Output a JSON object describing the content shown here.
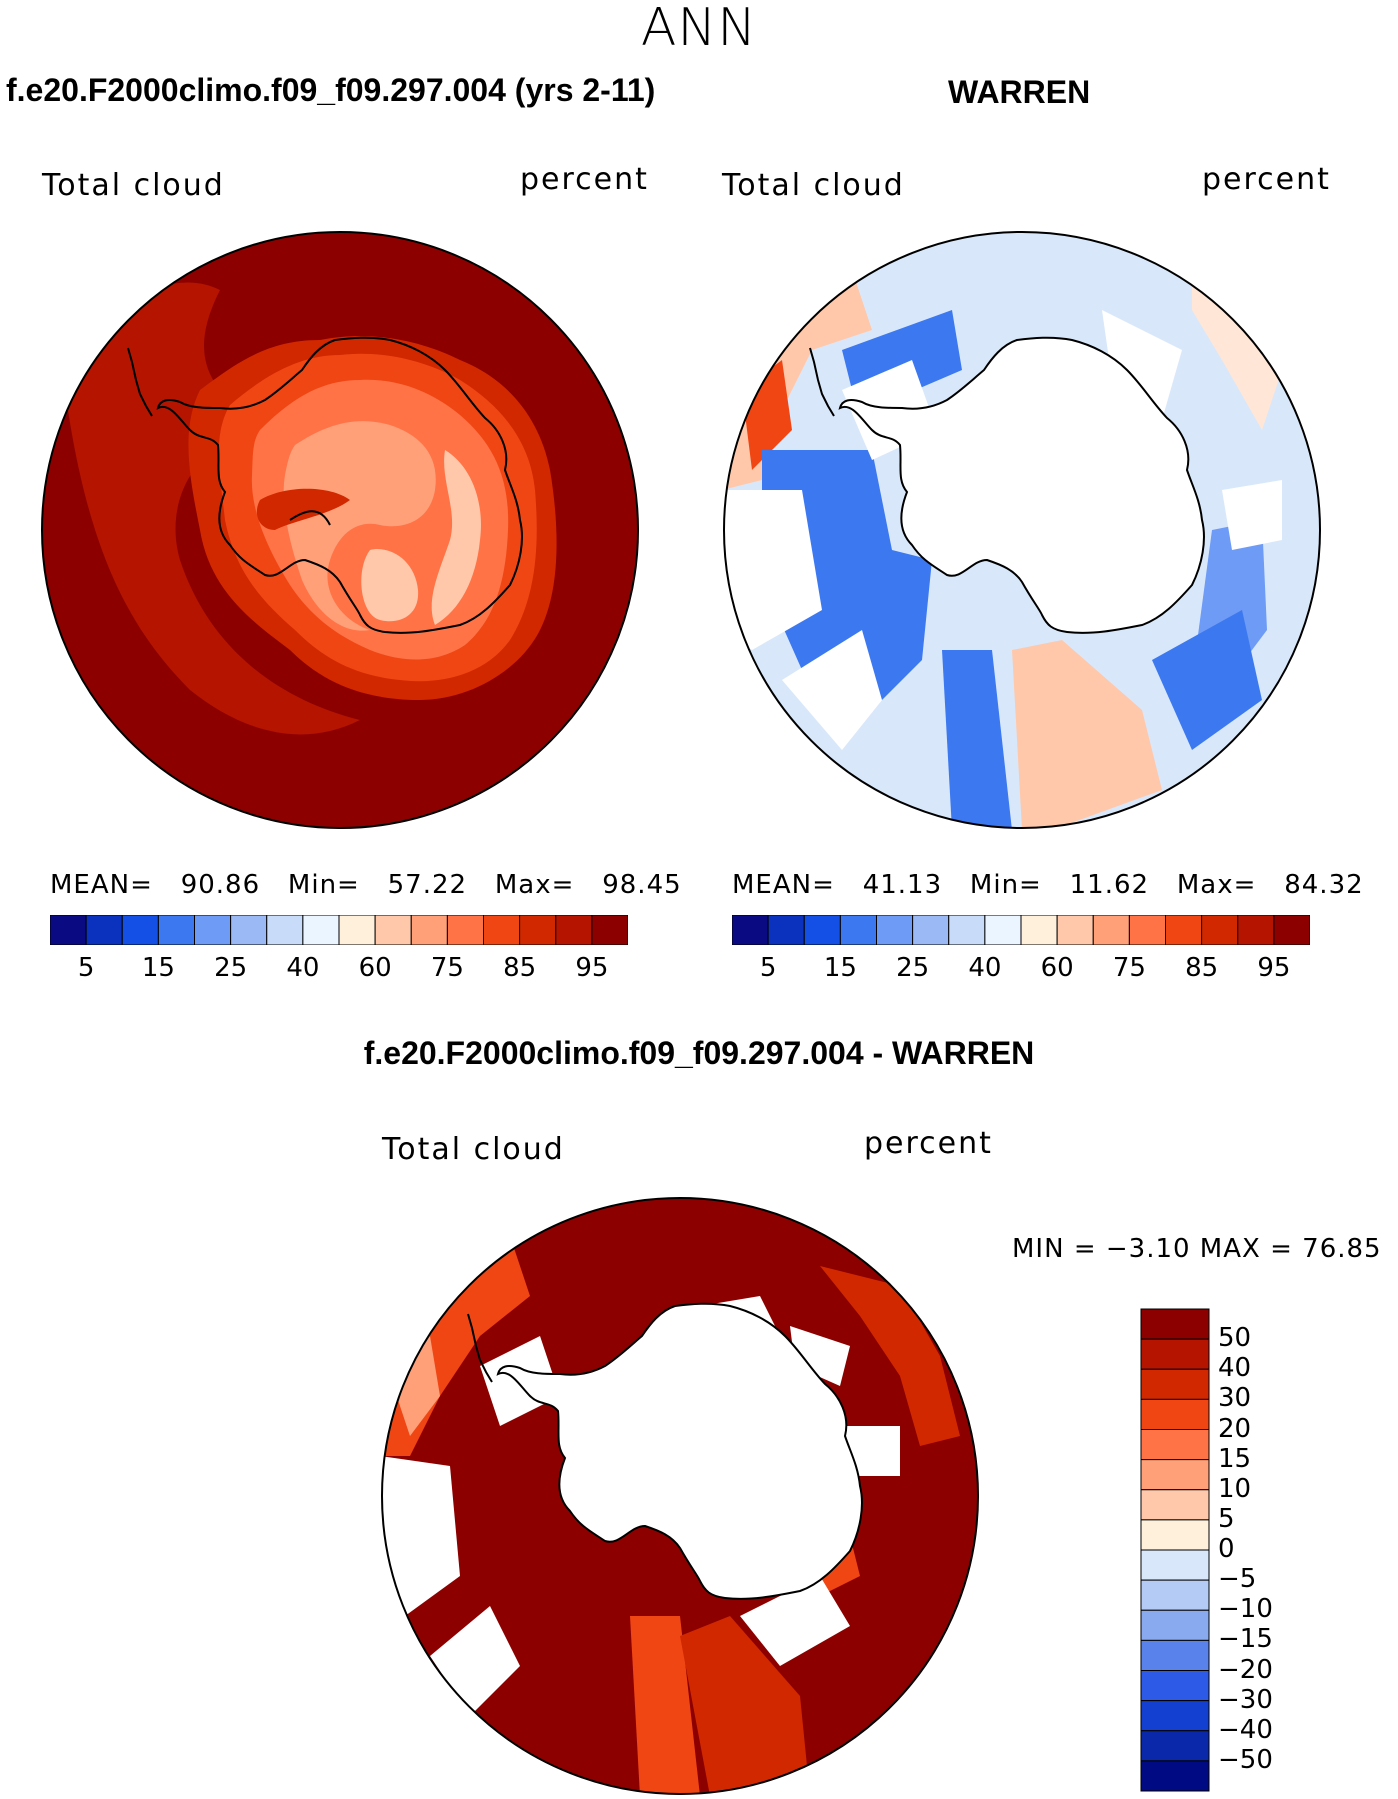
{
  "page": {
    "title": "ANN"
  },
  "colors": {
    "abs_scale": [
      "#0a0a82",
      "#0a32be",
      "#1450e6",
      "#3c78f0",
      "#6e9bf5",
      "#9bb9f5",
      "#c8dcfa",
      "#ebf5ff",
      "#fff0dc",
      "#ffc8aa",
      "#ffa078",
      "#ff7346",
      "#f04614",
      "#d22800",
      "#b41400",
      "#8c0000"
    ],
    "diff_scale": [
      "#8c0000",
      "#b41400",
      "#d22800",
      "#f04614",
      "#ff7346",
      "#ffa078",
      "#ffc8aa",
      "#fff0dc",
      "#d8e8fa",
      "#b4cbf5",
      "#8aaaf0",
      "#5a82eb",
      "#2d5ae6",
      "#1440d2",
      "#0a28aa",
      "#000a82"
    ],
    "coast": "#000000"
  },
  "panels": {
    "model": {
      "case_title": "f.e20.F2000climo.f09_f09.297.004 (yrs 2-11)",
      "variable": "Total cloud",
      "units": "percent",
      "stats": {
        "mean_label": "MEAN=",
        "mean": "90.86",
        "min_label": "Min=",
        "min": "57.22",
        "max_label": "Max=",
        "max": "98.45"
      },
      "colorbar_ticks": [
        "5",
        "15",
        "25",
        "40",
        "60",
        "75",
        "85",
        "95"
      ]
    },
    "obs": {
      "case_title": "WARREN",
      "variable": "Total cloud",
      "units": "percent",
      "stats": {
        "mean_label": "MEAN=",
        "mean": "41.13",
        "min_label": "Min=",
        "min": "11.62",
        "max_label": "Max=",
        "max": "84.32"
      },
      "colorbar_ticks": [
        "5",
        "15",
        "25",
        "40",
        "60",
        "75",
        "85",
        "95"
      ]
    },
    "diff": {
      "case_title": "f.e20.F2000climo.f09_f09.297.004 - WARREN",
      "variable": "Total cloud",
      "units": "percent",
      "range_text": "MIN =   −3.10 MAX =   76.85",
      "colorbar_ticks": [
        "50",
        "40",
        "30",
        "20",
        "15",
        "10",
        "5",
        "0",
        "−5",
        "−10",
        "−15",
        "−20",
        "−30",
        "−40",
        "−50"
      ]
    }
  }
}
